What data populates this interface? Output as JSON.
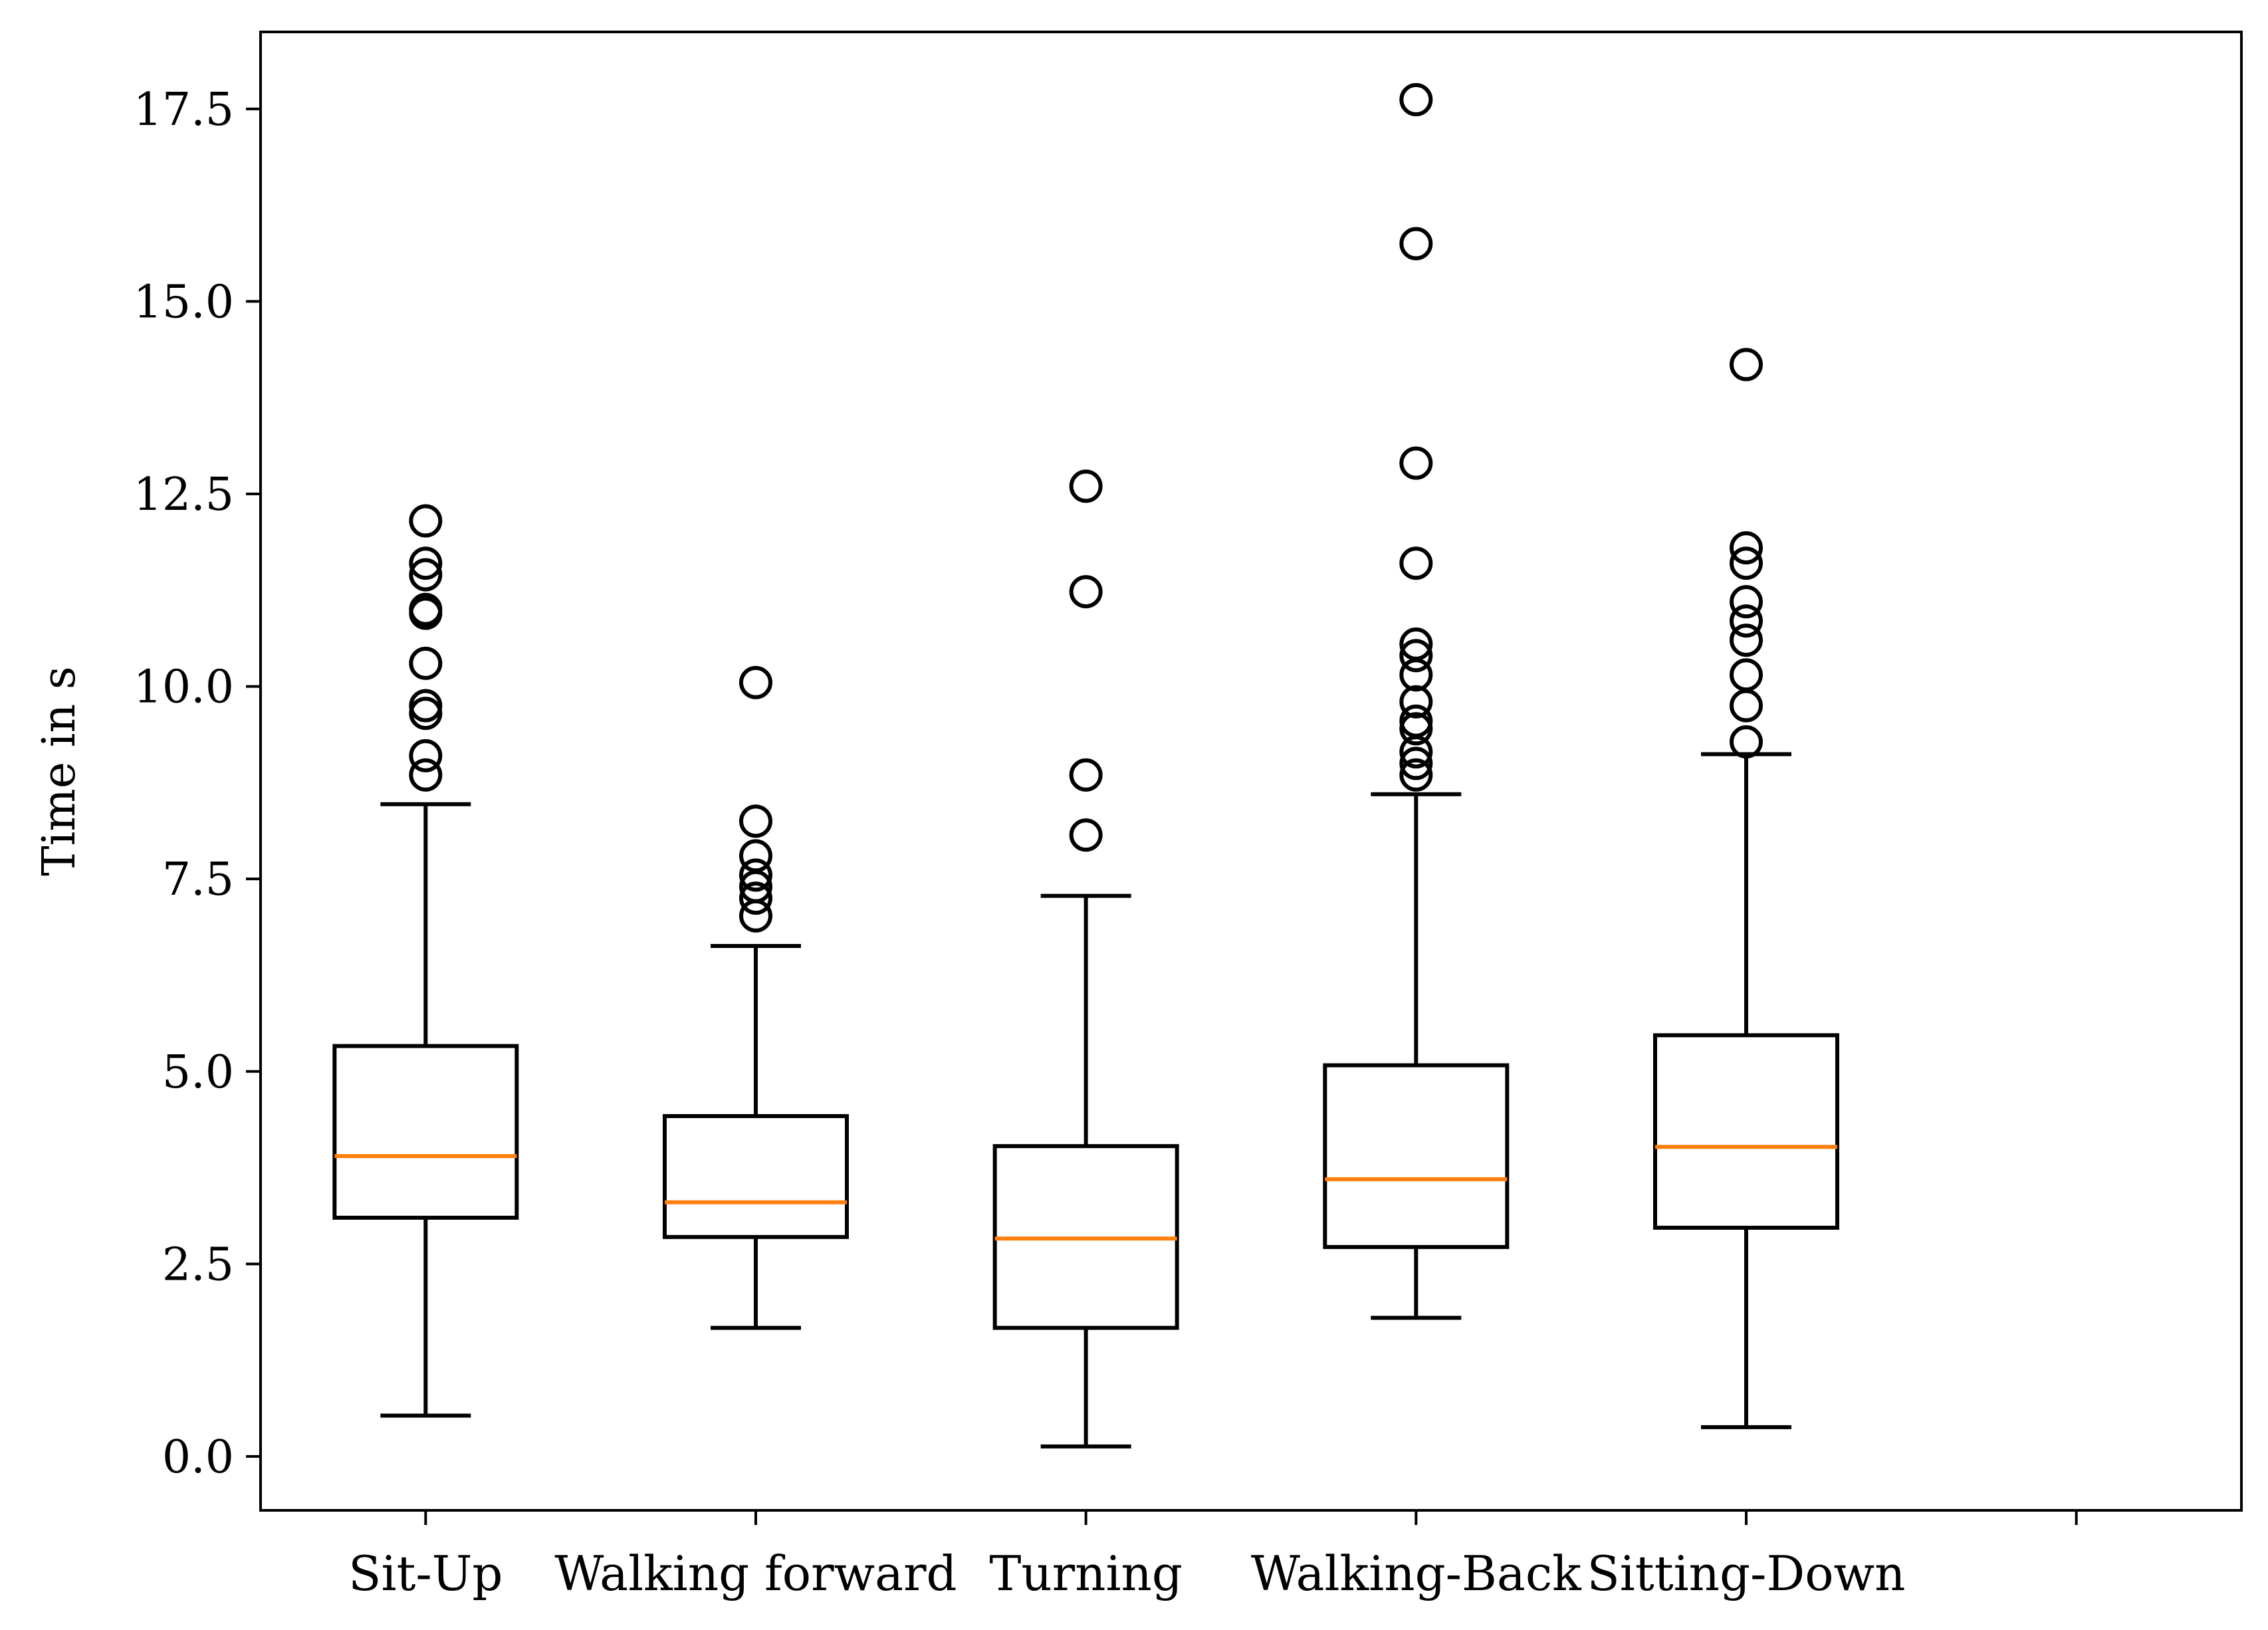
{
  "chart_data": {
    "type": "boxplot",
    "title": "",
    "xlabel": "",
    "ylabel": "Time in s",
    "ylim": [
      -0.7,
      18.5
    ],
    "yticks": [
      "0.0",
      "2.5",
      "5.0",
      "7.5",
      "10.0",
      "12.5",
      "15.0",
      "17.5"
    ],
    "categories": [
      "Sit-Up",
      "Walking forward",
      "Turning",
      "Walking-Back",
      "Sitting-Down"
    ],
    "boxes": [
      {
        "name": "Sit-Up",
        "whisker_low": 0.53,
        "q1": 3.1,
        "median": 3.9,
        "q3": 5.33,
        "whisker_high": 8.47,
        "outliers": [
          8.85,
          9.1,
          9.65,
          9.75,
          10.3,
          10.95,
          11.0,
          11.45,
          11.6,
          12.15
        ]
      },
      {
        "name": "Walking forward",
        "whisker_low": 1.67,
        "q1": 2.85,
        "median": 3.3,
        "q3": 4.42,
        "whisker_high": 6.63,
        "outliers": [
          7.02,
          7.25,
          7.4,
          7.55,
          7.8,
          8.25,
          10.05
        ]
      },
      {
        "name": "Turning",
        "whisker_low": 0.13,
        "q1": 1.67,
        "median": 2.83,
        "q3": 4.03,
        "whisker_high": 7.28,
        "outliers": [
          8.07,
          8.85,
          11.23,
          12.6
        ]
      },
      {
        "name": "Walking-Back",
        "whisker_low": 1.8,
        "q1": 2.72,
        "median": 3.6,
        "q3": 5.08,
        "whisker_high": 8.6,
        "outliers": [
          8.85,
          9.0,
          9.15,
          9.45,
          9.55,
          9.8,
          10.15,
          10.4,
          10.55,
          11.6,
          12.9,
          15.75,
          17.62
        ]
      },
      {
        "name": "Sitting-Down",
        "whisker_low": 0.38,
        "q1": 2.97,
        "median": 4.02,
        "q3": 5.47,
        "whisker_high": 9.12,
        "outliers": [
          9.28,
          9.75,
          10.15,
          10.6,
          10.85,
          11.1,
          11.6,
          11.8,
          14.18
        ]
      }
    ],
    "colors": {
      "box": "#000000",
      "median": "#ff7f0e",
      "outlier_edge": "#000000",
      "background": "#ffffff"
    }
  }
}
